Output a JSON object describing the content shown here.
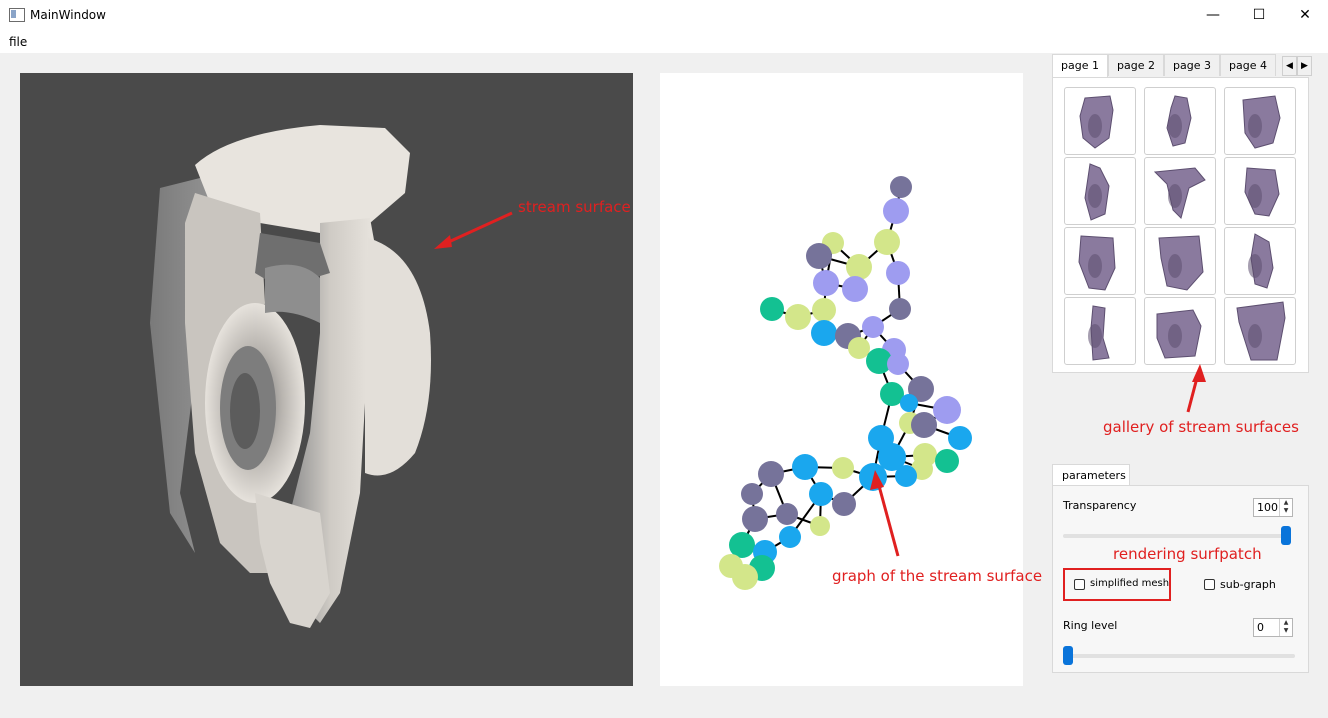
{
  "window": {
    "title": "MainWindow",
    "minimize": "—",
    "maximize": "☐",
    "close": "✕"
  },
  "menu": {
    "file": "file"
  },
  "annotations": {
    "stream_surface": "stream surface",
    "graph": "graph of the stream surface",
    "gallery": "gallery of stream surfaces",
    "rendering": "rendering surfpatch"
  },
  "gallery": {
    "tabs": [
      "page 1",
      "page 2",
      "page 3",
      "page 4"
    ],
    "active_tab": "page 1",
    "thumbnail_count": 12
  },
  "parameters": {
    "tab": "parameters",
    "transparency_label": "Transparency",
    "transparency_value": "100",
    "transparency_level": 1.0,
    "simplified_mesh_label": "simplified mesh",
    "simplified_mesh_checked": false,
    "subgraph_label": "sub-graph",
    "subgraph_checked": false,
    "ring_level_label": "Ring level",
    "ring_level_value": "0",
    "ring_level_level": 0.0
  },
  "colors": {
    "accent": "#0a74da",
    "annotation": "#e02020",
    "viewport_bg": "#4a4a4a",
    "surface": "#ece8e2",
    "thumb_surface": "#8a7a9e"
  }
}
